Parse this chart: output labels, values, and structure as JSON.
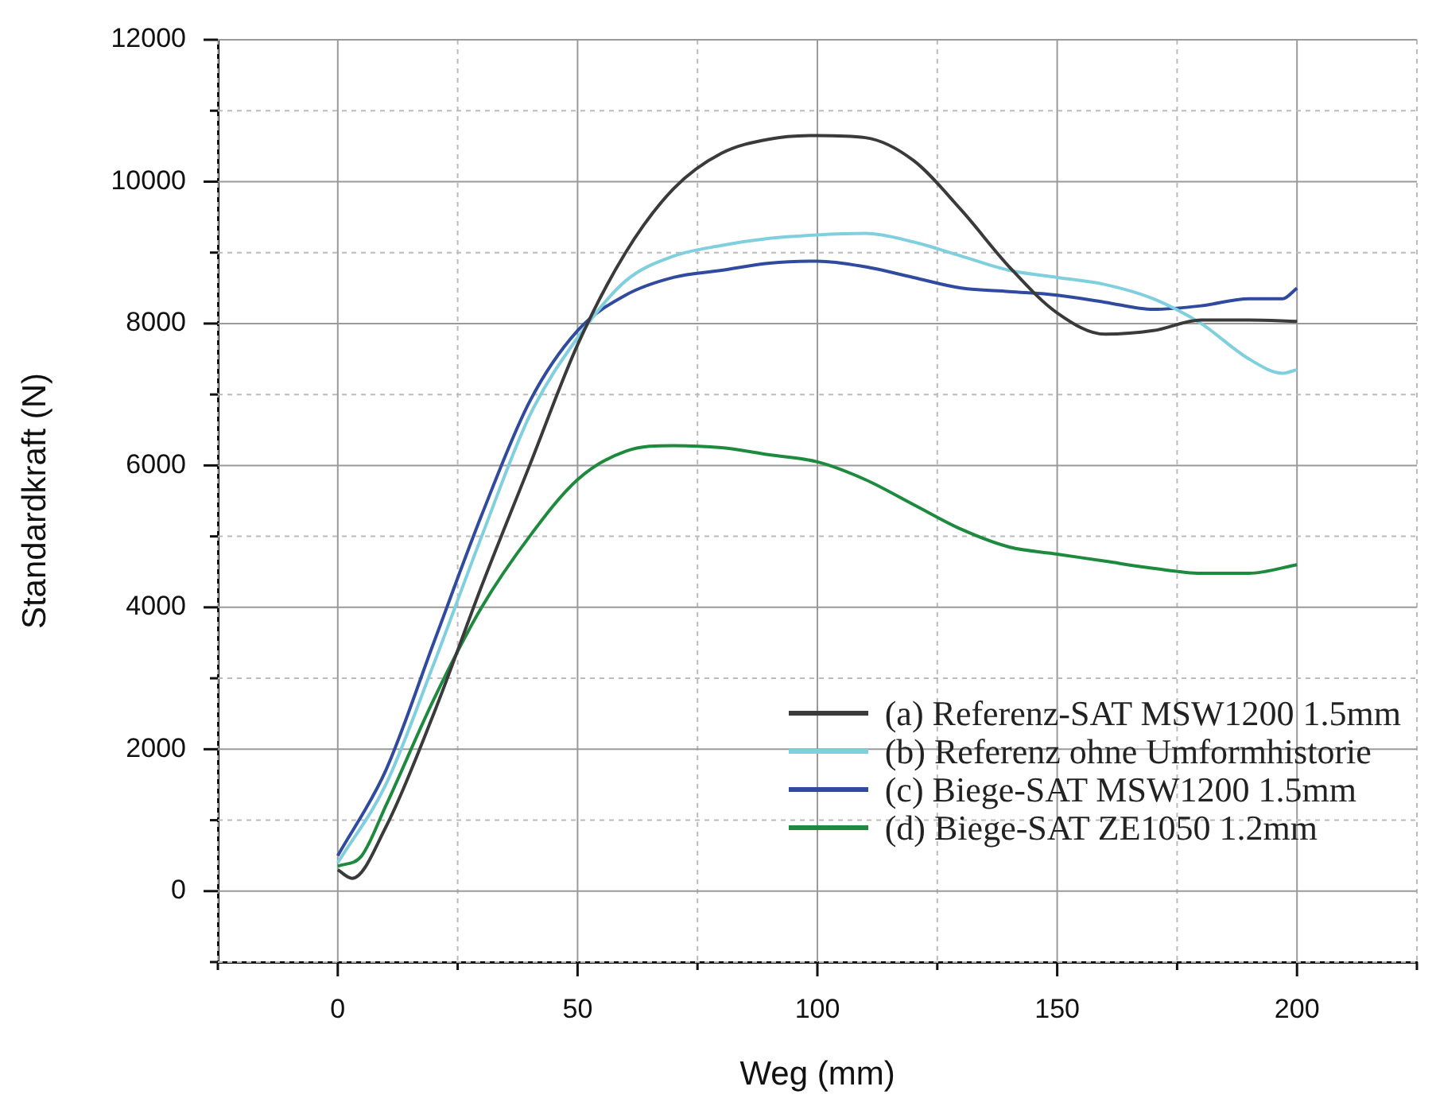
{
  "chart_data": {
    "type": "line",
    "xlabel": "Weg (mm)",
    "ylabel": "Standardkraft (N)",
    "xlim": [
      -25,
      225
    ],
    "xticks": [
      {
        "value": -25,
        "label": null
      },
      0,
      {
        "value": 25,
        "label": null
      },
      50,
      {
        "value": 75,
        "label": null
      },
      100,
      {
        "value": 125,
        "label": null
      },
      150,
      {
        "value": 175,
        "label": null
      },
      200,
      {
        "value": 225,
        "label": null
      }
    ],
    "ylim": [
      -1000,
      12000
    ],
    "yticks": [
      {
        "value": -1000,
        "label": null
      },
      0,
      {
        "value": 1000,
        "label": null
      },
      2000,
      {
        "value": 3000,
        "label": null
      },
      4000,
      {
        "value": 5000,
        "label": null
      },
      6000,
      {
        "value": 7000,
        "label": null
      },
      8000,
      {
        "value": 9000,
        "label": null
      },
      10000,
      {
        "value": 11000,
        "label": null
      },
      12000
    ],
    "grid": true,
    "legend": "bottom right",
    "marker": "none",
    "line_style": "solid",
    "series": [
      {
        "name": "(a) Referenz-SAT MSW1200 1.5mm",
        "color": "#3a3a3a",
        "x": [
          0,
          3,
          10,
          20,
          30,
          40,
          50,
          60,
          70,
          80,
          90,
          100,
          110,
          120,
          130,
          140,
          150,
          160,
          170,
          180,
          190,
          200
        ],
        "values": [
          300,
          180,
          900,
          2500,
          4300,
          6000,
          7700,
          9000,
          9900,
          10400,
          10600,
          10650,
          10620,
          10300,
          9600,
          8800,
          8150,
          7850,
          7900,
          8050,
          8050,
          8030
        ]
      },
      {
        "name": "(b) Referenz ohne Umformhistorie",
        "color": "#7fcfdf",
        "x": [
          0,
          10,
          20,
          30,
          40,
          50,
          60,
          70,
          80,
          90,
          100,
          110,
          120,
          130,
          140,
          150,
          160,
          170,
          180,
          190,
          197,
          200
        ],
        "values": [
          400,
          1500,
          3200,
          5000,
          6700,
          7800,
          8600,
          8950,
          9100,
          9200,
          9250,
          9270,
          9150,
          8950,
          8750,
          8650,
          8550,
          8350,
          8000,
          7500,
          7300,
          7350
        ]
      },
      {
        "name": "(c) Biege-SAT MSW1200 1.5mm",
        "color": "#2f4a9e",
        "x": [
          0,
          10,
          20,
          30,
          40,
          50,
          60,
          70,
          80,
          90,
          100,
          110,
          120,
          130,
          140,
          150,
          160,
          170,
          180,
          190,
          197,
          200
        ],
        "values": [
          500,
          1700,
          3500,
          5300,
          6900,
          7900,
          8400,
          8650,
          8750,
          8850,
          8880,
          8800,
          8650,
          8500,
          8450,
          8400,
          8300,
          8200,
          8250,
          8350,
          8350,
          8500
        ]
      },
      {
        "name": "(d) Biege-SAT ZE1050 1.2mm",
        "color": "#1e8a3e",
        "x": [
          0,
          5,
          10,
          20,
          30,
          40,
          50,
          60,
          70,
          80,
          90,
          100,
          110,
          120,
          130,
          140,
          150,
          160,
          170,
          180,
          190,
          200
        ],
        "values": [
          350,
          500,
          1200,
          2700,
          4000,
          5000,
          5800,
          6200,
          6280,
          6250,
          6150,
          6050,
          5800,
          5450,
          5100,
          4850,
          4750,
          4650,
          4550,
          4480,
          4480,
          4600
        ]
      }
    ]
  }
}
